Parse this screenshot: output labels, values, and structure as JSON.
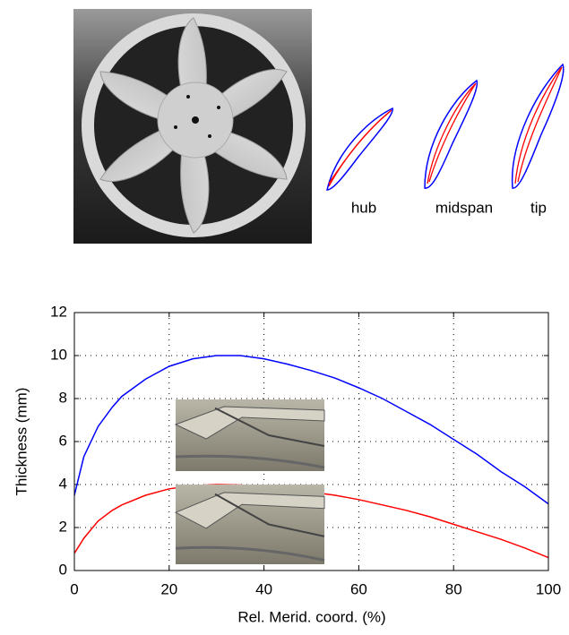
{
  "airfoil_labels": [
    "hub",
    "midspan",
    "tip"
  ],
  "chart_data": {
    "type": "line",
    "xlabel": "Rel. Merid. coord. (%)",
    "ylabel": "Thickness (mm)",
    "x": [
      0,
      2,
      5,
      8,
      10,
      15,
      20,
      25,
      30,
      35,
      40,
      45,
      50,
      55,
      60,
      65,
      70,
      75,
      80,
      85,
      90,
      95,
      100
    ],
    "series": [
      {
        "color": "#0000ff",
        "values": [
          3.5,
          5.3,
          6.7,
          7.6,
          8.1,
          8.9,
          9.5,
          9.85,
          10.0,
          10.0,
          9.85,
          9.6,
          9.3,
          8.95,
          8.5,
          8.0,
          7.4,
          6.8,
          6.1,
          5.4,
          4.6,
          3.9,
          3.1
        ]
      },
      {
        "color": "#ff0000",
        "values": [
          0.8,
          1.5,
          2.3,
          2.8,
          3.05,
          3.5,
          3.8,
          3.95,
          4.0,
          3.98,
          3.9,
          3.8,
          3.65,
          3.5,
          3.3,
          3.05,
          2.8,
          2.5,
          2.15,
          1.8,
          1.45,
          1.05,
          0.6
        ]
      }
    ],
    "xlim": [
      0,
      100
    ],
    "xticks": [
      0,
      20,
      40,
      60,
      80,
      100
    ],
    "ylim": [
      0,
      12
    ],
    "yticks": [
      0,
      2,
      4,
      6,
      8,
      10,
      12
    ],
    "grid": true
  }
}
